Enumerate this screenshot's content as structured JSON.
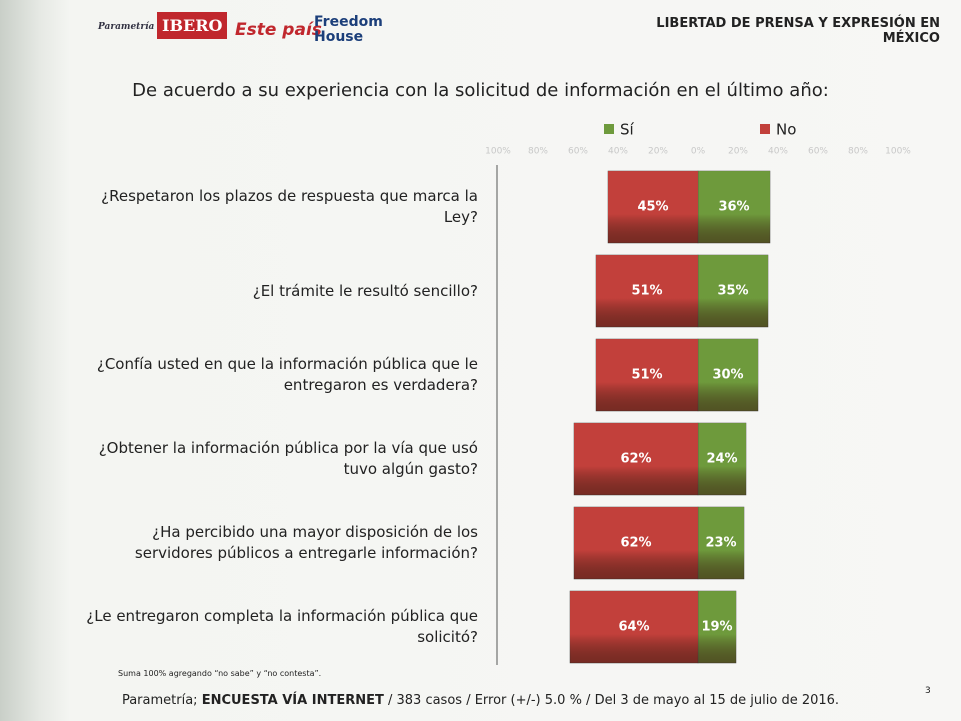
{
  "header": {
    "title": "LIBERTAD DE PRENSA Y EXPRESIÓN EN MÉXICO",
    "logos": [
      "Parametría",
      "IBERO",
      "Este país",
      "Freedom House"
    ]
  },
  "chart_data": {
    "type": "diverging-bar",
    "title": "De acuerdo a su experiencia con la solicitud de información en el último año:",
    "categories": [
      "¿Respetaron los plazos de respuesta que marca la Ley?",
      "¿El trámite le resultó sencillo?",
      "¿Confía usted en que la información pública que le entregaron es verdadera?",
      "¿Obtener la información pública por la vía que usó tuvo algún gasto?",
      "¿Ha percibido una mayor disposición de los servidores públicos a entregarle información?",
      "¿Le entregaron completa la información pública que solicitó?"
    ],
    "series": [
      {
        "name": "Sí",
        "color": "#6e9a3c",
        "values": [
          36,
          35,
          30,
          24,
          23,
          19
        ],
        "value_labels": [
          "36%",
          "35%",
          "30%",
          "24%",
          "23%",
          "19%"
        ]
      },
      {
        "name": "No",
        "color": "#c2403b",
        "values": [
          -45,
          -51,
          -51,
          -62,
          -62,
          -64
        ],
        "value_labels": [
          "45%",
          "51%",
          "51%",
          "62%",
          "62%",
          "64%"
        ]
      }
    ],
    "xlim": [
      -100,
      100
    ],
    "xticks": [
      {
        "value": -100,
        "label": "100%"
      },
      {
        "value": -80,
        "label": "80%"
      },
      {
        "value": -60,
        "label": "60%"
      },
      {
        "value": -40,
        "label": "40%"
      },
      {
        "value": -20,
        "label": "20%"
      },
      {
        "value": 0,
        "label": "0%"
      },
      {
        "value": 20,
        "label": "20%"
      },
      {
        "value": 40,
        "label": "40%"
      },
      {
        "value": 60,
        "label": "60%"
      },
      {
        "value": 80,
        "label": "80%"
      },
      {
        "value": 100,
        "label": "100%"
      }
    ],
    "note": "Suma 100%  agregando “no sabe” y “no contesta”."
  },
  "footer": {
    "source": "Parametría;",
    "method": "ENCUESTA VÍA INTERNET",
    "details": "/  383 casos / Error (+/-) 5.0 % / Del 3 de mayo al 15 de julio de 2016.",
    "page": "3"
  }
}
